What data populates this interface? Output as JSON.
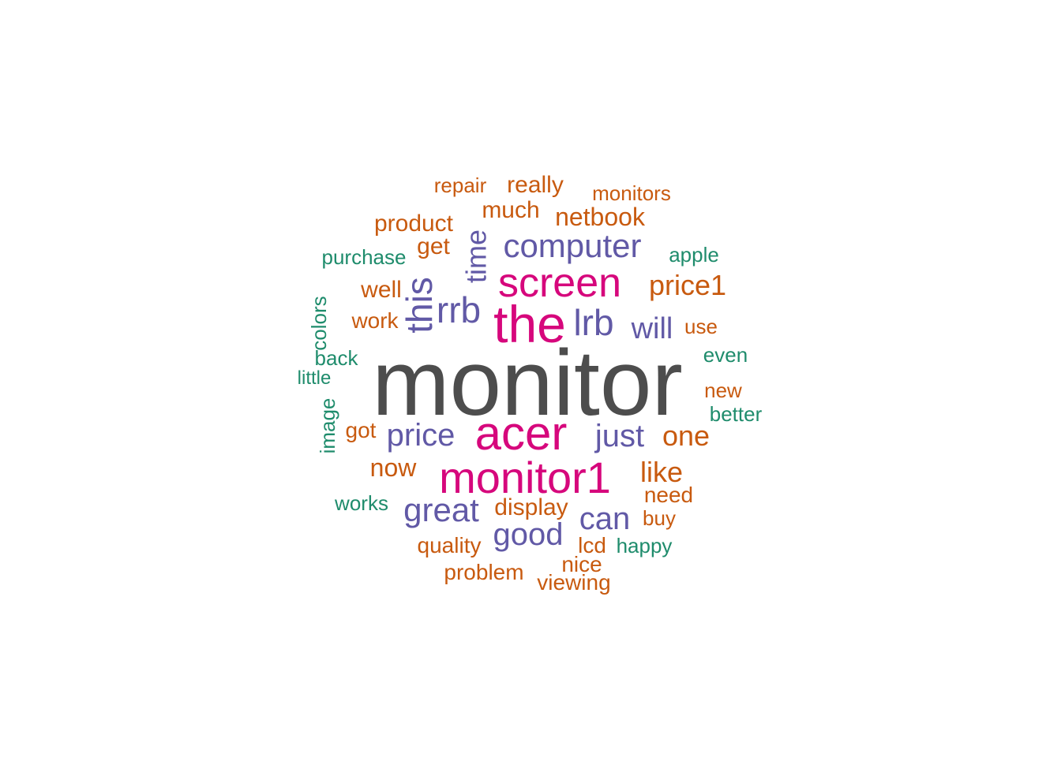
{
  "palette": {
    "gray": "#4d4d4d",
    "magenta": "#d6077c",
    "purple": "#6159a6",
    "orange": "#c85a0f",
    "green": "#1f8c6c"
  },
  "words": [
    {
      "text": "monitor",
      "color": "gray",
      "vertical": false
    },
    {
      "text": "the",
      "color": "magenta",
      "vertical": false
    },
    {
      "text": "acer",
      "color": "magenta",
      "vertical": false
    },
    {
      "text": "monitor1",
      "color": "magenta",
      "vertical": false
    },
    {
      "text": "screen",
      "color": "magenta",
      "vertical": false
    },
    {
      "text": "rrb",
      "color": "purple",
      "vertical": false
    },
    {
      "text": "lrb",
      "color": "purple",
      "vertical": false
    },
    {
      "text": "this",
      "color": "purple",
      "vertical": true
    },
    {
      "text": "time",
      "color": "purple",
      "vertical": true
    },
    {
      "text": "computer",
      "color": "purple",
      "vertical": false
    },
    {
      "text": "price",
      "color": "purple",
      "vertical": false
    },
    {
      "text": "just",
      "color": "purple",
      "vertical": false
    },
    {
      "text": "great",
      "color": "purple",
      "vertical": false
    },
    {
      "text": "good",
      "color": "purple",
      "vertical": false
    },
    {
      "text": "can",
      "color": "purple",
      "vertical": false
    },
    {
      "text": "will",
      "color": "purple",
      "vertical": false
    },
    {
      "text": "price1",
      "color": "orange",
      "vertical": false
    },
    {
      "text": "one",
      "color": "orange",
      "vertical": false
    },
    {
      "text": "like",
      "color": "orange",
      "vertical": false
    },
    {
      "text": "now",
      "color": "orange",
      "vertical": false
    },
    {
      "text": "netbook",
      "color": "orange",
      "vertical": false
    },
    {
      "text": "display",
      "color": "orange",
      "vertical": false
    },
    {
      "text": "product",
      "color": "orange",
      "vertical": false
    },
    {
      "text": "much",
      "color": "orange",
      "vertical": false
    },
    {
      "text": "really",
      "color": "orange",
      "vertical": false
    },
    {
      "text": "repair",
      "color": "orange",
      "vertical": false
    },
    {
      "text": "monitors",
      "color": "orange",
      "vertical": false
    },
    {
      "text": "get",
      "color": "orange",
      "vertical": false
    },
    {
      "text": "well",
      "color": "orange",
      "vertical": false
    },
    {
      "text": "work",
      "color": "orange",
      "vertical": false
    },
    {
      "text": "use",
      "color": "orange",
      "vertical": false
    },
    {
      "text": "new",
      "color": "orange",
      "vertical": false
    },
    {
      "text": "got",
      "color": "orange",
      "vertical": false
    },
    {
      "text": "need",
      "color": "orange",
      "vertical": false
    },
    {
      "text": "buy",
      "color": "orange",
      "vertical": false
    },
    {
      "text": "lcd",
      "color": "orange",
      "vertical": false
    },
    {
      "text": "quality",
      "color": "orange",
      "vertical": false
    },
    {
      "text": "nice",
      "color": "orange",
      "vertical": false
    },
    {
      "text": "problem",
      "color": "orange",
      "vertical": false
    },
    {
      "text": "viewing",
      "color": "orange",
      "vertical": false
    },
    {
      "text": "purchase",
      "color": "green",
      "vertical": false
    },
    {
      "text": "apple",
      "color": "green",
      "vertical": false
    },
    {
      "text": "colors",
      "color": "green",
      "vertical": true
    },
    {
      "text": "back",
      "color": "green",
      "vertical": false
    },
    {
      "text": "little",
      "color": "green",
      "vertical": false
    },
    {
      "text": "image",
      "color": "green",
      "vertical": true
    },
    {
      "text": "even",
      "color": "green",
      "vertical": false
    },
    {
      "text": "better",
      "color": "green",
      "vertical": false
    },
    {
      "text": "works",
      "color": "green",
      "vertical": false
    },
    {
      "text": "happy",
      "color": "green",
      "vertical": false
    }
  ]
}
